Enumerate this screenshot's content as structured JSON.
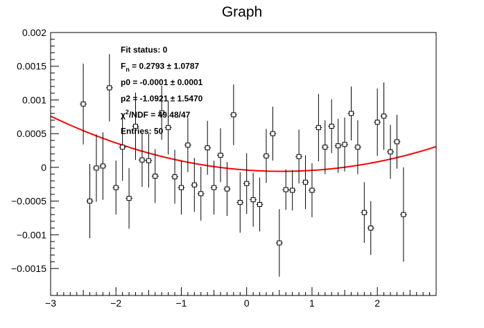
{
  "chart_data": {
    "type": "scatter",
    "title": "Graph",
    "xlabel": "",
    "ylabel": "",
    "xlim": [
      -3.0,
      2.9
    ],
    "ylim": [
      -0.0019,
      0.002
    ],
    "grid": false,
    "x_ticks": [
      {
        "value": -3,
        "label": "−3"
      },
      {
        "value": -2,
        "label": "−2"
      },
      {
        "value": -1,
        "label": "−1"
      },
      {
        "value": 0,
        "label": "0"
      },
      {
        "value": 1,
        "label": "1"
      },
      {
        "value": 2,
        "label": "2"
      }
    ],
    "y_ticks": [
      {
        "value": 0.002,
        "label": "0.002"
      },
      {
        "value": 0.0015,
        "label": "0.0015"
      },
      {
        "value": 0.001,
        "label": "0.001"
      },
      {
        "value": 0.0005,
        "label": "0.0005"
      },
      {
        "value": 0,
        "label": "0"
      },
      {
        "value": -0.0005,
        "label": "−0.0005"
      },
      {
        "value": -0.001,
        "label": "−0.001"
      },
      {
        "value": -0.0015,
        "label": "−0.0015"
      }
    ],
    "series": [
      {
        "style": "markers-with-error-bars",
        "color": "#000000",
        "points": [
          {
            "x": -2.5,
            "y": 0.00094,
            "err": 0.0006
          },
          {
            "x": -2.4,
            "y": -0.0005,
            "err": 0.00055
          },
          {
            "x": -2.3,
            "y": -1e-05,
            "err": 0.0005
          },
          {
            "x": -2.2,
            "y": 2e-05,
            "err": 0.0005
          },
          {
            "x": -2.1,
            "y": 0.00118,
            "err": 0.0005
          },
          {
            "x": -2.0,
            "y": -0.0003,
            "err": 0.0004
          },
          {
            "x": -1.9,
            "y": 0.0003,
            "err": 0.0005
          },
          {
            "x": -1.8,
            "y": -0.00046,
            "err": 0.00045
          },
          {
            "x": -1.7,
            "y": 0.00061,
            "err": 0.0005
          },
          {
            "x": -1.6,
            "y": 0.00011,
            "err": 0.0004
          },
          {
            "x": -1.5,
            "y": 0.0001,
            "err": 0.0004
          },
          {
            "x": -1.4,
            "y": -0.00013,
            "err": 0.0004
          },
          {
            "x": -1.3,
            "y": 0.00081,
            "err": 0.0004
          },
          {
            "x": -1.2,
            "y": 0.00059,
            "err": 0.0004
          },
          {
            "x": -1.1,
            "y": -0.00014,
            "err": 0.0004
          },
          {
            "x": -1.0,
            "y": -0.0003,
            "err": 0.0004
          },
          {
            "x": -0.9,
            "y": 0.00033,
            "err": 0.0004
          },
          {
            "x": -0.8,
            "y": -0.00026,
            "err": 0.0004
          },
          {
            "x": -0.7,
            "y": -0.00039,
            "err": 0.0004
          },
          {
            "x": -0.6,
            "y": 0.00029,
            "err": 0.0004
          },
          {
            "x": -0.5,
            "y": -0.0003,
            "err": 0.0004
          },
          {
            "x": -0.4,
            "y": 0.00018,
            "err": 0.0004
          },
          {
            "x": -0.3,
            "y": -0.00032,
            "err": 0.0004
          },
          {
            "x": -0.2,
            "y": 0.00078,
            "err": 0.00045
          },
          {
            "x": -0.1,
            "y": -0.00052,
            "err": 0.00045
          },
          {
            "x": 0.0,
            "y": -0.00024,
            "err": 0.00045
          },
          {
            "x": 0.1,
            "y": -0.00048,
            "err": 0.0004
          },
          {
            "x": 0.2,
            "y": -0.00055,
            "err": 0.0004
          },
          {
            "x": 0.3,
            "y": 0.00017,
            "err": 0.0004
          },
          {
            "x": 0.4,
            "y": 0.0005,
            "err": 0.0004
          },
          {
            "x": 0.5,
            "y": -0.00112,
            "err": 0.0005
          },
          {
            "x": 0.6,
            "y": -0.00033,
            "err": 0.0003
          },
          {
            "x": 0.7,
            "y": -0.00034,
            "err": 0.0003
          },
          {
            "x": 0.8,
            "y": 0.00016,
            "err": 0.0004
          },
          {
            "x": 0.9,
            "y": -0.00022,
            "err": 0.0004
          },
          {
            "x": 1.0,
            "y": -0.00034,
            "err": 0.0004
          },
          {
            "x": 1.1,
            "y": 0.00059,
            "err": 0.0005
          },
          {
            "x": 1.2,
            "y": 0.0003,
            "err": 0.0004
          },
          {
            "x": 1.3,
            "y": 0.00061,
            "err": 0.0004
          },
          {
            "x": 1.4,
            "y": 0.00032,
            "err": 0.0004
          },
          {
            "x": 1.5,
            "y": 0.00034,
            "err": 0.0004
          },
          {
            "x": 1.6,
            "y": 0.0008,
            "err": 0.0004
          },
          {
            "x": 1.7,
            "y": 0.0003,
            "err": 0.0004
          },
          {
            "x": 1.8,
            "y": -0.00067,
            "err": 0.00045
          },
          {
            "x": 1.9,
            "y": -0.0009,
            "err": 0.0004
          },
          {
            "x": 2.0,
            "y": 0.00067,
            "err": 0.0005
          },
          {
            "x": 2.1,
            "y": 0.00076,
            "err": 0.0005
          },
          {
            "x": 2.2,
            "y": 0.00023,
            "err": 0.0004
          },
          {
            "x": 2.3,
            "y": 0.00038,
            "err": 0.0004
          },
          {
            "x": 2.4,
            "y": -0.0007,
            "err": 0.0007
          }
        ]
      },
      {
        "style": "fit-line",
        "color": "#ff0000",
        "function": "quadratic",
        "p0": -4e-05,
        "p1": -7e-05,
        "p2": 6.55e-05,
        "x_range": [
          -3.0,
          2.9
        ]
      }
    ],
    "stats_box": {
      "lines": [
        {
          "label": "Fit status: 0",
          "sup": ""
        },
        {
          "label": "F",
          "sub": "n",
          "rest": " = 0.2793 ± 1.0787"
        },
        {
          "label": "p0 = -0.0001 ± 0.0001"
        },
        {
          "label": "p2 = -1.0921 ± 1.5470"
        },
        {
          "label": "χ",
          "sup": "2",
          "rest": "/NDF = 49.48/47"
        },
        {
          "label": "Entries: 50"
        }
      ]
    }
  }
}
